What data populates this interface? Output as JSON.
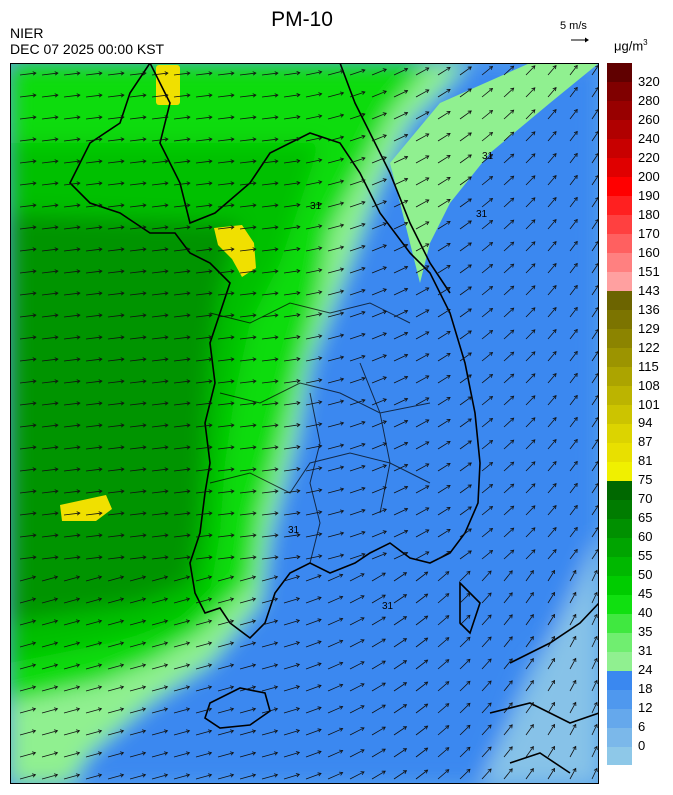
{
  "header": {
    "title": "PM-10",
    "org": "NIER",
    "datetime": "DEC 07 2025 00:00 KST"
  },
  "reference_vector": {
    "label": "5 m/s"
  },
  "legend": {
    "unit_base": "μg/m",
    "unit_exp": "3",
    "levels": [
      {
        "label": "0",
        "color": "#8ec8e8"
      },
      {
        "label": "6",
        "color": "#7bb8ea"
      },
      {
        "label": "12",
        "color": "#65a8ec"
      },
      {
        "label": "18",
        "color": "#4f98ee"
      },
      {
        "label": "24",
        "color": "#3a88f0"
      },
      {
        "label": "31",
        "color": "#90f090"
      },
      {
        "label": "35",
        "color": "#70ee70"
      },
      {
        "label": "40",
        "color": "#40e840"
      },
      {
        "label": "45",
        "color": "#10e010"
      },
      {
        "label": "50",
        "color": "#00cc00"
      },
      {
        "label": "55",
        "color": "#00b800"
      },
      {
        "label": "60",
        "color": "#00a400"
      },
      {
        "label": "65",
        "color": "#009000"
      },
      {
        "label": "70",
        "color": "#007c00"
      },
      {
        "label": "75",
        "color": "#006800"
      },
      {
        "label": "81",
        "color": "#f0f000"
      },
      {
        "label": "87",
        "color": "#e8e000"
      },
      {
        "label": "94",
        "color": "#dcd400"
      },
      {
        "label": "101",
        "color": "#ccc400"
      },
      {
        "label": "108",
        "color": "#bcb400"
      },
      {
        "label": "115",
        "color": "#aca400"
      },
      {
        "label": "122",
        "color": "#9c9400"
      },
      {
        "label": "129",
        "color": "#8c8400"
      },
      {
        "label": "136",
        "color": "#7c7400"
      },
      {
        "label": "143",
        "color": "#6c6400"
      },
      {
        "label": "151",
        "color": "#ffa0a0"
      },
      {
        "label": "160",
        "color": "#ff8080"
      },
      {
        "label": "170",
        "color": "#ff6060"
      },
      {
        "label": "180",
        "color": "#ff4040"
      },
      {
        "label": "190",
        "color": "#ff2020"
      },
      {
        "label": "200",
        "color": "#ff0000"
      },
      {
        "label": "220",
        "color": "#e00000"
      },
      {
        "label": "240",
        "color": "#c80000"
      },
      {
        "label": "260",
        "color": "#b00000"
      },
      {
        "label": "280",
        "color": "#980000"
      },
      {
        "label": "320",
        "color": "#800000"
      }
    ],
    "top_color": "#600000"
  },
  "map": {
    "contour_labels": [
      "31",
      "31",
      "31",
      "31",
      "31"
    ],
    "colors": {
      "high_green": "#009400",
      "mid_green": "#00c000",
      "bright_green": "#10dc10",
      "light_green": "#90f090",
      "blue": "#3a88f0",
      "light_blue": "#5aa4ec",
      "pale_blue": "#8ec8e8",
      "yellow": "#f0e000"
    }
  }
}
